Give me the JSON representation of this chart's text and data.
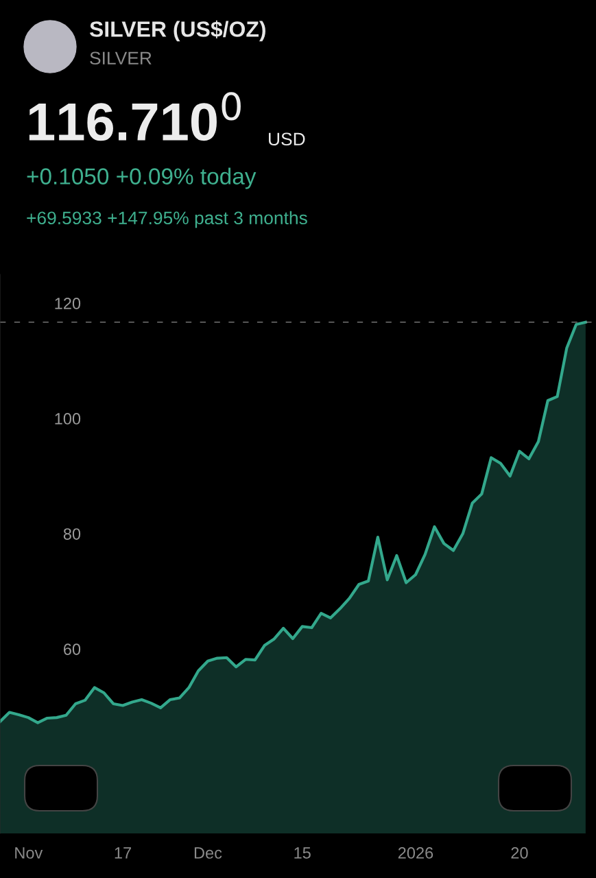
{
  "chart_data": {
    "type": "area",
    "title": "SILVER (US$/OZ)",
    "subtitle": "SILVER",
    "annotations": [
      "116.710$^{0}$",
      "USD",
      "+0.1050 +0.09% today",
      "+69.5933 +147.95% past 3 months"
    ],
    "categories": [
      null,
      null,
      null,
      "Nov",
      null,
      null,
      null,
      null,
      null,
      null,
      null,
      null,
      null,
      "17",
      null,
      null,
      null,
      null,
      null,
      null,
      null,
      null,
      "Dec",
      null,
      null,
      null,
      null,
      null,
      null,
      null,
      null,
      null,
      "15",
      null,
      null,
      null,
      null,
      null,
      null,
      null,
      null,
      null,
      null,
      null,
      "2026",
      null,
      null,
      null,
      null,
      null,
      null,
      null,
      null,
      null,
      null,
      "20",
      null,
      null,
      null,
      null,
      null,
      null,
      null
    ],
    "series": [
      {
        "color": "#33a88c",
        "values": [
          47.4,
          49.0,
          48.6,
          48.1,
          47.2,
          48.0,
          48.1,
          48.5,
          50.5,
          51.1,
          53.3,
          52.4,
          50.5,
          50.2,
          50.8,
          51.2,
          50.6,
          49.8,
          51.2,
          51.5,
          53.3,
          56.2,
          57.9,
          58.4,
          58.5,
          56.9,
          58.2,
          58.1,
          60.6,
          61.7,
          63.6,
          61.8,
          63.9,
          63.7,
          66.2,
          65.4,
          67.0,
          68.8,
          71.2,
          71.8,
          79.4,
          72.0,
          76.2,
          71.5,
          72.9,
          76.4,
          81.2,
          78.3,
          77.1,
          80.0,
          85.3,
          86.9,
          93.2,
          92.2,
          90.0,
          94.3,
          93.0,
          96.0,
          103.1,
          103.8,
          112.2,
          116.3,
          116.7
        ]
      }
    ],
    "ylim": [
      28,
      125
    ],
    "yticks": [
      60,
      80,
      100,
      120
    ],
    "ref_lines": [
      {
        "axis": "y",
        "value": 116.71,
        "color": "#888888",
        "line_style": "dashed"
      }
    ],
    "grid": false,
    "legend": false
  }
}
